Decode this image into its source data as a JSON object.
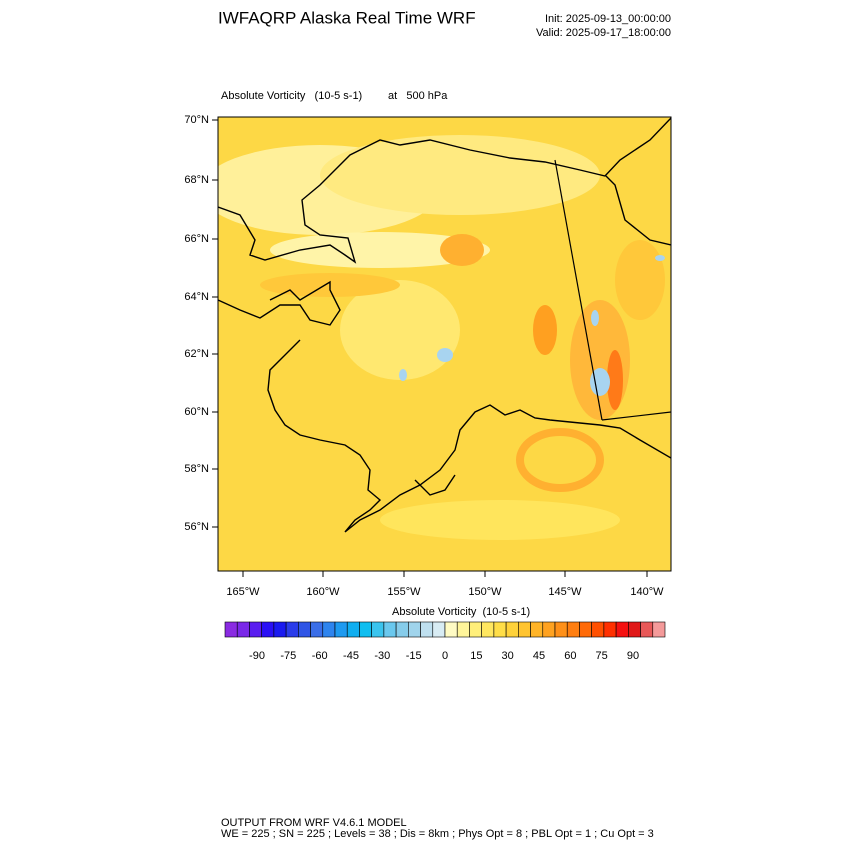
{
  "header": {
    "title": "IWFAQRP Alaska Real Time WRF",
    "init": "Init: 2025-09-13_00:00:00",
    "valid": "Valid: 2025-09-17_18:00:00"
  },
  "plot": {
    "field": "Absolute Vorticity   (10-5 s-1)",
    "level": "at   500 hPa",
    "lat_labels": [
      "70°N",
      "68°N",
      "66°N",
      "64°N",
      "62°N",
      "60°N",
      "58°N",
      "56°N"
    ],
    "lon_labels": [
      "165°W",
      "160°W",
      "155°W",
      "150°W",
      "145°W",
      "140°W"
    ]
  },
  "colorbar": {
    "title": "Absolute Vorticity  (10-5 s-1)",
    "ticks": [
      -90,
      -75,
      -60,
      -45,
      -30,
      -15,
      0,
      15,
      30,
      45,
      60,
      75,
      90
    ],
    "colors": [
      "#8a2be2",
      "#7a28e8",
      "#5a1ef0",
      "#2a10f5",
      "#1a1af0",
      "#2a3cea",
      "#2f55e6",
      "#3a6ee8",
      "#2e84ee",
      "#1e9af0",
      "#10aef0",
      "#10bef0",
      "#3ac4ee",
      "#6ac8ee",
      "#86ccea",
      "#a0d4ec",
      "#bfe0f0",
      "#d8ecf4",
      "#fffbc4",
      "#fff59a",
      "#ffef7a",
      "#ffe760",
      "#ffde48",
      "#ffd23a",
      "#ffc430",
      "#ffb428",
      "#ffa220",
      "#ff9018",
      "#ff7e10",
      "#ff6a08",
      "#ff5000",
      "#ff3000",
      "#f51010",
      "#e01818",
      "#e85858",
      "#f49a9a"
    ]
  },
  "footer": {
    "line1": "OUTPUT FROM WRF V4.6.1 MODEL",
    "line2": "WE = 225 ; SN = 225 ; Levels = 38 ; Dis = 8km ; Phys Opt = 8 ; PBL Opt = 1 ; Cu Opt = 3"
  }
}
